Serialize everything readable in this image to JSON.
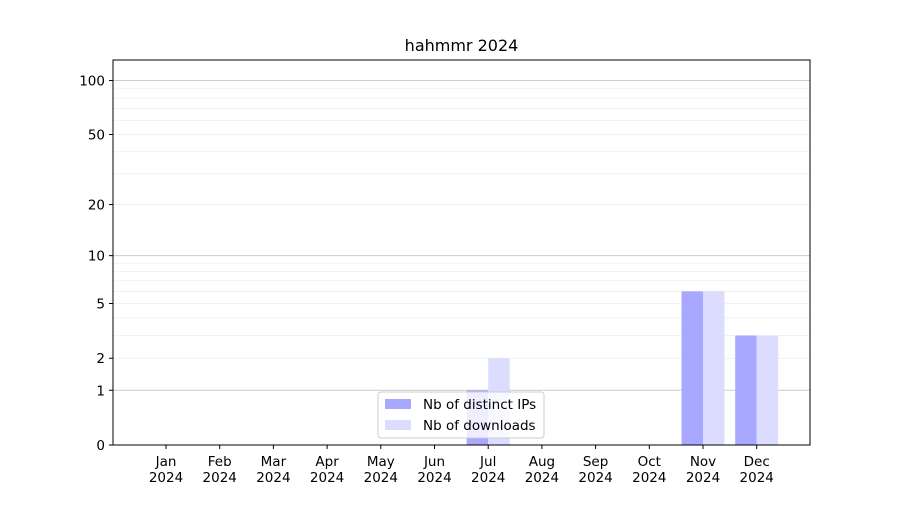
{
  "chart_data": {
    "type": "bar",
    "title": "hahmmr 2024",
    "xlabel": "",
    "ylabel": "",
    "yscale": "symlog",
    "ylim": [
      0,
      130
    ],
    "grid": "y",
    "categories": [
      {
        "month": "Jan",
        "year": "2024"
      },
      {
        "month": "Feb",
        "year": "2024"
      },
      {
        "month": "Mar",
        "year": "2024"
      },
      {
        "month": "Apr",
        "year": "2024"
      },
      {
        "month": "May",
        "year": "2024"
      },
      {
        "month": "Jun",
        "year": "2024"
      },
      {
        "month": "Jul",
        "year": "2024"
      },
      {
        "month": "Aug",
        "year": "2024"
      },
      {
        "month": "Sep",
        "year": "2024"
      },
      {
        "month": "Oct",
        "year": "2024"
      },
      {
        "month": "Nov",
        "year": "2024"
      },
      {
        "month": "Dec",
        "year": "2024"
      }
    ],
    "yticks": [
      "0",
      "1",
      "2",
      "5",
      "10",
      "20",
      "50",
      "100"
    ],
    "series": [
      {
        "name": "Nb of distinct IPs",
        "color": "#a8a8ff",
        "values": [
          0,
          0,
          0,
          0,
          0,
          0,
          1,
          0,
          0,
          0,
          6,
          3
        ]
      },
      {
        "name": "Nb of downloads",
        "color": "#dcdcff",
        "values": [
          0,
          0,
          0,
          0,
          0,
          0,
          2,
          0,
          0,
          0,
          6,
          3
        ]
      }
    ],
    "legend_position": "lower-center"
  }
}
